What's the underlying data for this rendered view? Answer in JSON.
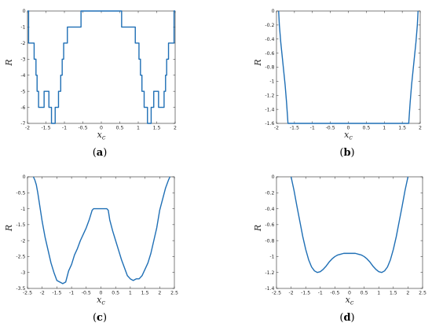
{
  "colors": {
    "line": "#1f6fb5",
    "axis": "#262626"
  },
  "chart_data": [
    {
      "id": "a",
      "type": "line",
      "caption_letter": "a",
      "xlabel": "x",
      "xlabel_sub": "c",
      "ylabel": "R",
      "xlim": [
        -2,
        2
      ],
      "ylim": [
        -7,
        0
      ],
      "xticks": [
        -2,
        -1.5,
        -1,
        -0.5,
        0,
        0.5,
        1,
        1.5,
        2
      ],
      "xtick_labels": [
        "-2",
        "-1.5",
        "-1",
        "-0.5",
        "0",
        "0.5",
        "1",
        "1.5",
        "2"
      ],
      "yticks": [
        0,
        -1,
        -2,
        -3,
        -4,
        -5,
        -6,
        -7
      ],
      "ytick_labels": [
        "0",
        "-1",
        "-2",
        "-3",
        "-4",
        "-5",
        "-6",
        "-7"
      ],
      "step": true,
      "x": [
        -2.0,
        -1.97,
        -1.97,
        -1.82,
        -1.82,
        -1.77,
        -1.77,
        -1.74,
        -1.74,
        -1.7,
        -1.7,
        -1.55,
        -1.55,
        -1.42,
        -1.42,
        -1.35,
        -1.35,
        -1.25,
        -1.25,
        -1.16,
        -1.16,
        -1.1,
        -1.1,
        -1.06,
        -1.06,
        -1.02,
        -1.02,
        -0.92,
        -0.92,
        -0.55,
        -0.55,
        0.55,
        0.55,
        0.92,
        0.92,
        1.02,
        1.02,
        1.06,
        1.06,
        1.1,
        1.1,
        1.16,
        1.16,
        1.25,
        1.25,
        1.35,
        1.35,
        1.42,
        1.42,
        1.55,
        1.55,
        1.7,
        1.7,
        1.74,
        1.74,
        1.77,
        1.77,
        1.82,
        1.82,
        1.97,
        1.97,
        2.0
      ],
      "y": [
        0,
        0,
        -2,
        -2,
        -3,
        -3,
        -4,
        -4,
        -5,
        -5,
        -6,
        -6,
        -5,
        -5,
        -6,
        -6,
        -7,
        -7,
        -6,
        -6,
        -5,
        -5,
        -4,
        -4,
        -3,
        -3,
        -2,
        -2,
        -1,
        -1,
        0,
        0,
        -1,
        -1,
        -2,
        -2,
        -3,
        -3,
        -4,
        -4,
        -5,
        -5,
        -6,
        -6,
        -7,
        -7,
        -6,
        -6,
        -5,
        -5,
        -6,
        -6,
        -5,
        -5,
        -4,
        -4,
        -3,
        -3,
        -2,
        -2,
        0,
        0
      ]
    },
    {
      "id": "b",
      "type": "line",
      "caption_letter": "b",
      "xlabel": "x",
      "xlabel_sub": "c",
      "ylabel": "R",
      "xlim": [
        -2,
        2
      ],
      "ylim": [
        -1.6,
        0
      ],
      "xticks": [
        -2,
        -1.5,
        -1,
        -0.5,
        0,
        0.5,
        1,
        1.5,
        2
      ],
      "xtick_labels": [
        "-2",
        "-1.5",
        "-1",
        "-0.5",
        "0",
        "0.5",
        "1",
        "1.5",
        "2"
      ],
      "yticks": [
        0,
        -0.2,
        -0.4,
        -0.6,
        -0.8,
        -1,
        -1.2,
        -1.4,
        -1.6
      ],
      "ytick_labels": [
        "0",
        "-0.2",
        "-0.4",
        "-0.6",
        "-0.8",
        "-1",
        "-1.2",
        "-1.4",
        "-1.6"
      ],
      "x": [
        -1.94,
        -1.92,
        -1.88,
        -1.84,
        -1.8,
        -1.76,
        -1.72,
        -1.7,
        -1.68,
        1.68,
        1.7,
        1.72,
        1.76,
        1.8,
        1.84,
        1.88,
        1.92,
        1.94
      ],
      "y": [
        0,
        -0.2,
        -0.45,
        -0.65,
        -0.85,
        -1.05,
        -1.3,
        -1.45,
        -1.6,
        -1.6,
        -1.45,
        -1.3,
        -1.05,
        -0.85,
        -0.65,
        -0.45,
        -0.2,
        0
      ]
    },
    {
      "id": "c",
      "type": "line",
      "caption_letter": "c",
      "xlabel": "x",
      "xlabel_sub": "c",
      "ylabel": "R",
      "xlim": [
        -2.5,
        2.5
      ],
      "ylim": [
        -3.5,
        0
      ],
      "xticks": [
        -2.5,
        -2,
        -1.5,
        -1,
        -0.5,
        0,
        0.5,
        1,
        1.5,
        2,
        2.5
      ],
      "xtick_labels": [
        "-2.5",
        "-2",
        "-1.5",
        "-1",
        "-0.5",
        "0",
        "0.5",
        "1",
        "1.5",
        "2",
        "2.5"
      ],
      "yticks": [
        0,
        -0.5,
        -1,
        -1.5,
        -2,
        -2.5,
        -3,
        -3.5
      ],
      "ytick_labels": [
        "0",
        "-0.5",
        "-1",
        "-1.5",
        "-2",
        "-2.5",
        "-3",
        "-3.5"
      ],
      "x": [
        -2.3,
        -2.25,
        -2.2,
        -2.15,
        -2.1,
        -2.0,
        -1.9,
        -1.8,
        -1.7,
        -1.6,
        -1.5,
        -1.4,
        -1.3,
        -1.2,
        -1.1,
        -1.0,
        -0.9,
        -0.8,
        -0.7,
        -0.6,
        -0.5,
        -0.4,
        -0.3,
        -0.25,
        -0.2,
        -0.1,
        0.0,
        0.1,
        0.2,
        0.25,
        0.3,
        0.4,
        0.5,
        0.6,
        0.7,
        0.8,
        0.9,
        1.0,
        1.1,
        1.2,
        1.3,
        1.4,
        1.5,
        1.6,
        1.7,
        1.8,
        1.9,
        2.0,
        2.1,
        2.2,
        2.3,
        2.35
      ],
      "y": [
        0,
        -0.1,
        -0.25,
        -0.5,
        -0.8,
        -1.4,
        -1.9,
        -2.3,
        -2.7,
        -3.0,
        -3.25,
        -3.3,
        -3.35,
        -3.3,
        -2.95,
        -2.75,
        -2.45,
        -2.25,
        -2.0,
        -1.8,
        -1.6,
        -1.35,
        -1.05,
        -1.0,
        -1.0,
        -1.0,
        -1.0,
        -1.0,
        -1.0,
        -1.05,
        -1.35,
        -1.7,
        -2.0,
        -2.3,
        -2.6,
        -2.85,
        -3.1,
        -3.2,
        -3.25,
        -3.2,
        -3.2,
        -3.1,
        -2.9,
        -2.7,
        -2.4,
        -2.0,
        -1.6,
        -1.05,
        -0.7,
        -0.35,
        -0.1,
        0
      ]
    },
    {
      "id": "d",
      "type": "line",
      "caption_letter": "d",
      "xlabel": "x",
      "xlabel_sub": "c",
      "ylabel": "R",
      "xlim": [
        -2.5,
        2.5
      ],
      "ylim": [
        -1.4,
        0
      ],
      "xticks": [
        -2.5,
        -2,
        -1.5,
        -1,
        -0.5,
        0,
        0.5,
        1,
        1.5,
        2,
        2.5
      ],
      "xtick_labels": [
        "-2.5",
        "-2",
        "-1.5",
        "-1",
        "-0.5",
        "0",
        "0.5",
        "1",
        "1.5",
        "2",
        "2.5"
      ],
      "yticks": [
        0,
        -0.2,
        -0.4,
        -0.6,
        -0.8,
        -1,
        -1.2,
        -1.4
      ],
      "ytick_labels": [
        "0",
        "-0.2",
        "-0.4",
        "-0.6",
        "-0.8",
        "-1",
        "-1.2",
        "-1.4"
      ],
      "x": [
        -2.0,
        -1.9,
        -1.8,
        -1.7,
        -1.6,
        -1.5,
        -1.4,
        -1.3,
        -1.2,
        -1.1,
        -1.0,
        -0.9,
        -0.8,
        -0.7,
        -0.6,
        -0.5,
        -0.4,
        -0.3,
        -0.2,
        -0.1,
        0.0,
        0.1,
        0.2,
        0.3,
        0.4,
        0.5,
        0.6,
        0.7,
        0.8,
        0.9,
        1.0,
        1.1,
        1.2,
        1.3,
        1.4,
        1.5,
        1.6,
        1.7,
        1.8,
        1.9,
        2.0
      ],
      "y": [
        0,
        -0.17,
        -0.37,
        -0.56,
        -0.75,
        -0.91,
        -1.04,
        -1.13,
        -1.18,
        -1.2,
        -1.19,
        -1.16,
        -1.12,
        -1.07,
        -1.03,
        -1.0,
        -0.98,
        -0.97,
        -0.96,
        -0.96,
        -0.96,
        -0.96,
        -0.96,
        -0.97,
        -0.98,
        -1.0,
        -1.03,
        -1.07,
        -1.12,
        -1.16,
        -1.19,
        -1.2,
        -1.18,
        -1.13,
        -1.04,
        -0.91,
        -0.75,
        -0.56,
        -0.37,
        -0.17,
        0
      ]
    }
  ]
}
